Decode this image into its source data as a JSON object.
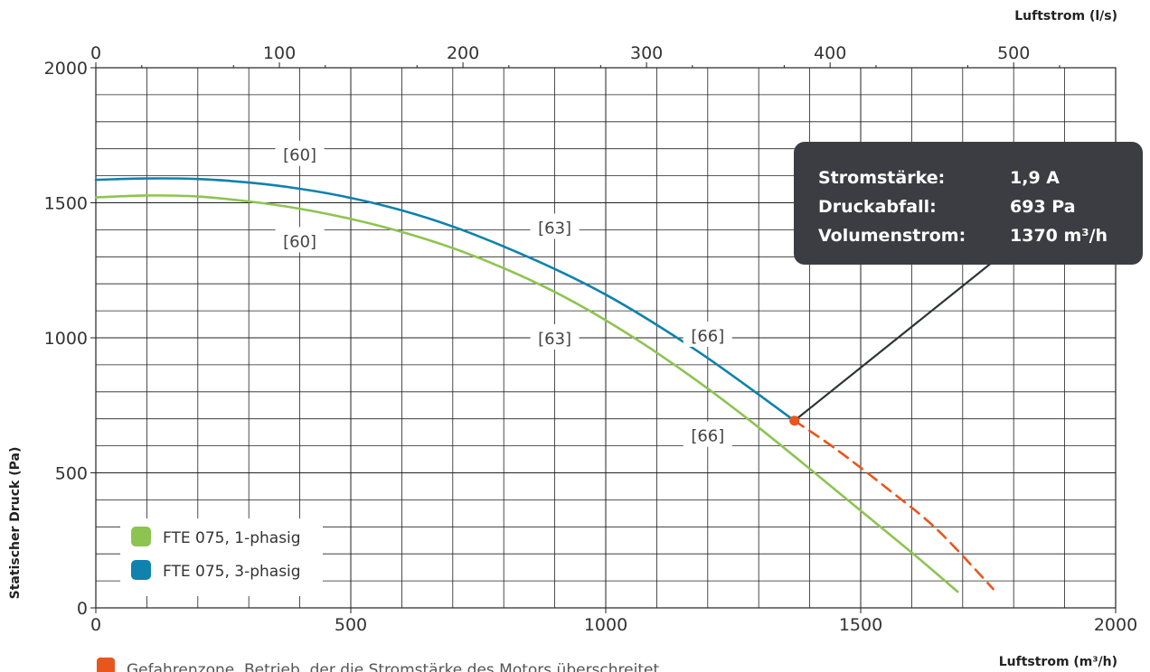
{
  "chart_data": {
    "type": "line",
    "xlabel": "Luftstrom (m³/h)",
    "x2label": "Luftstrom (l/s)",
    "ylabel": "Statischer Druck (Pa)",
    "xlim": [
      0,
      2000
    ],
    "x2lim": [
      0,
      555.6
    ],
    "ylim": [
      0,
      2000
    ],
    "x_ticks": [
      0,
      500,
      1000,
      1500,
      2000
    ],
    "x2_ticks": [
      0,
      100,
      200,
      300,
      400,
      500
    ],
    "y_ticks": [
      0,
      500,
      1000,
      1500,
      2000
    ],
    "grid": true,
    "legend_position": "bottom-left",
    "series": [
      {
        "name": "FTE 075, 1-phasig",
        "color": "#8dc451",
        "x": [
          0,
          100,
          200,
          300,
          400,
          500,
          600,
          700,
          800,
          900,
          1000,
          1100,
          1200,
          1300,
          1400,
          1500,
          1600,
          1690
        ],
        "y": [
          1520,
          1527,
          1523,
          1505,
          1478,
          1440,
          1392,
          1332,
          1258,
          1170,
          1065,
          945,
          812,
          668,
          515,
          360,
          205,
          60
        ]
      },
      {
        "name": "FTE 075, 3-phasig",
        "color": "#0f82ad",
        "x": [
          0,
          100,
          200,
          300,
          400,
          500,
          600,
          700,
          800,
          900,
          1000,
          1100,
          1200,
          1300,
          1370
        ],
        "y": [
          1585,
          1590,
          1588,
          1575,
          1552,
          1518,
          1472,
          1412,
          1338,
          1255,
          1160,
          1048,
          925,
          790,
          693
        ]
      },
      {
        "name": "Gefahrenzone",
        "color": "#e8561d",
        "dashed": true,
        "x": [
          1370,
          1450,
          1550,
          1650,
          1760
        ],
        "y": [
          693,
          590,
          445,
          290,
          70
        ]
      }
    ],
    "curve_labels": [
      {
        "text": "[60]",
        "x": 400,
        "y": 1680,
        "series": "FTE 075, 3-phasig"
      },
      {
        "text": "[60]",
        "x": 400,
        "y": 1360,
        "series": "FTE 075, 1-phasig"
      },
      {
        "text": "[63]",
        "x": 900,
        "y": 1410,
        "series": "FTE 075, 3-phasig"
      },
      {
        "text": "[63]",
        "x": 900,
        "y": 1000,
        "series": "FTE 075, 1-phasig"
      },
      {
        "text": "[66]",
        "x": 1200,
        "y": 1010,
        "series": "FTE 075, 3-phasig"
      },
      {
        "text": "[66]",
        "x": 1200,
        "y": 640,
        "series": "FTE 075, 1-phasig"
      }
    ],
    "operating_point": {
      "x": 1370,
      "y": 693,
      "color": "#e8561d"
    },
    "tooltip": {
      "rows": [
        {
          "label": "Stromstärke:",
          "value": "1,9 A"
        },
        {
          "label": "Druckabfall:",
          "value": "693 Pa"
        },
        {
          "label": "Volumenstrom:",
          "value": "1370 m³/h"
        }
      ]
    },
    "danger_legend": {
      "text": "Gefahrenzone. Betrieb, der die Stromstärke des Motors überschreitet",
      "color": "#e8561d"
    },
    "legend": [
      {
        "name": "FTE 075, 1-phasig",
        "color": "#8dc451"
      },
      {
        "name": "FTE 075, 3-phasig",
        "color": "#0f82ad"
      }
    ]
  }
}
